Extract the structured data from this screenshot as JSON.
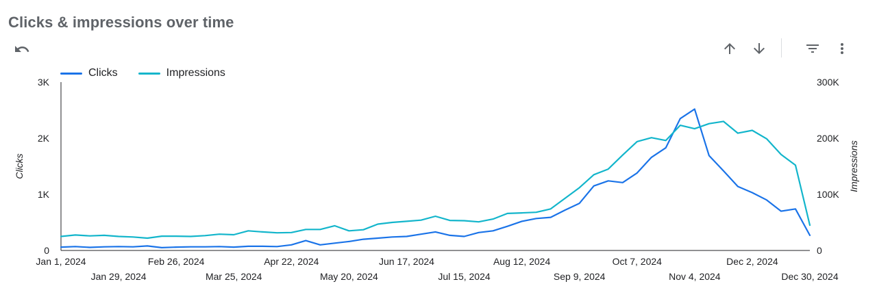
{
  "header": {
    "title": "Clicks & impressions over time"
  },
  "toolbar": {
    "undo_icon": "undo-icon",
    "sort_asc_icon": "arrow-up-icon",
    "sort_desc_icon": "arrow-down-icon",
    "filter_icon": "filter-icon",
    "more_icon": "more-vert-icon"
  },
  "colors": {
    "clicks": "#1a73e8",
    "impressions": "#12b5cb",
    "axis": "#202124",
    "text": "#202124"
  },
  "chart_data": {
    "type": "line",
    "title": "Clicks & impressions over time",
    "x_tick_labels_row1": [
      "Jan 1, 2024",
      "Feb 26, 2024",
      "Apr 22, 2024",
      "Jun 17, 2024",
      "Aug 12, 2024",
      "Oct 7, 2024",
      "Dec 2, 2024"
    ],
    "x_tick_labels_row2": [
      "Jan 29, 2024",
      "Mar 25, 2024",
      "May 20, 2024",
      "Jul 15, 2024",
      "Sep 9, 2024",
      "Nov 4, 2024",
      "Dec 30, 2024"
    ],
    "x": [
      "2024-01-01",
      "2024-01-08",
      "2024-01-15",
      "2024-01-22",
      "2024-01-29",
      "2024-02-05",
      "2024-02-12",
      "2024-02-19",
      "2024-02-26",
      "2024-03-04",
      "2024-03-11",
      "2024-03-18",
      "2024-03-25",
      "2024-04-01",
      "2024-04-08",
      "2024-04-15",
      "2024-04-22",
      "2024-04-29",
      "2024-05-06",
      "2024-05-13",
      "2024-05-20",
      "2024-05-27",
      "2024-06-03",
      "2024-06-10",
      "2024-06-17",
      "2024-06-24",
      "2024-07-01",
      "2024-07-08",
      "2024-07-15",
      "2024-07-22",
      "2024-07-29",
      "2024-08-05",
      "2024-08-12",
      "2024-08-19",
      "2024-08-26",
      "2024-09-02",
      "2024-09-09",
      "2024-09-16",
      "2024-09-23",
      "2024-09-30",
      "2024-10-07",
      "2024-10-14",
      "2024-10-21",
      "2024-10-28",
      "2024-11-04",
      "2024-11-11",
      "2024-11-18",
      "2024-11-25",
      "2024-12-02",
      "2024-12-09",
      "2024-12-16",
      "2024-12-23",
      "2024-12-30"
    ],
    "series": [
      {
        "name": "Clicks",
        "axis": "left",
        "values": [
          60,
          70,
          55,
          65,
          70,
          65,
          80,
          50,
          60,
          65,
          65,
          70,
          60,
          75,
          75,
          70,
          100,
          175,
          100,
          130,
          160,
          200,
          220,
          240,
          250,
          290,
          330,
          270,
          250,
          320,
          350,
          430,
          520,
          570,
          590,
          720,
          840,
          1150,
          1240,
          1210,
          1380,
          1660,
          1830,
          2350,
          2520,
          1690,
          1420,
          1140,
          1030,
          900,
          700,
          740,
          270
        ]
      },
      {
        "name": "Impressions",
        "axis": "right",
        "values": [
          25000,
          27500,
          26000,
          27000,
          25000,
          24000,
          22000,
          25500,
          25500,
          25000,
          26500,
          29000,
          28000,
          35000,
          33000,
          31500,
          32000,
          37500,
          37500,
          44000,
          35000,
          37000,
          47000,
          50000,
          52000,
          54000,
          61000,
          53500,
          53000,
          51000,
          56000,
          66000,
          67000,
          68000,
          74000,
          93000,
          112000,
          135000,
          145000,
          170000,
          194000,
          201000,
          196000,
          223000,
          217000,
          226000,
          230000,
          209000,
          214000,
          199000,
          171000,
          152000,
          45000
        ]
      }
    ],
    "y_left": {
      "label": "Clicks",
      "min": 0,
      "max": 3000,
      "ticks": [
        0,
        1000,
        2000,
        3000
      ],
      "tick_labels": [
        "0",
        "1K",
        "2K",
        "3K"
      ]
    },
    "y_right": {
      "label": "Impressions",
      "min": 0,
      "max": 300000,
      "ticks": [
        0,
        100000,
        200000,
        300000
      ],
      "tick_labels": [
        "0",
        "100K",
        "200K",
        "300K"
      ]
    },
    "grid": false,
    "legend": "top-left"
  }
}
